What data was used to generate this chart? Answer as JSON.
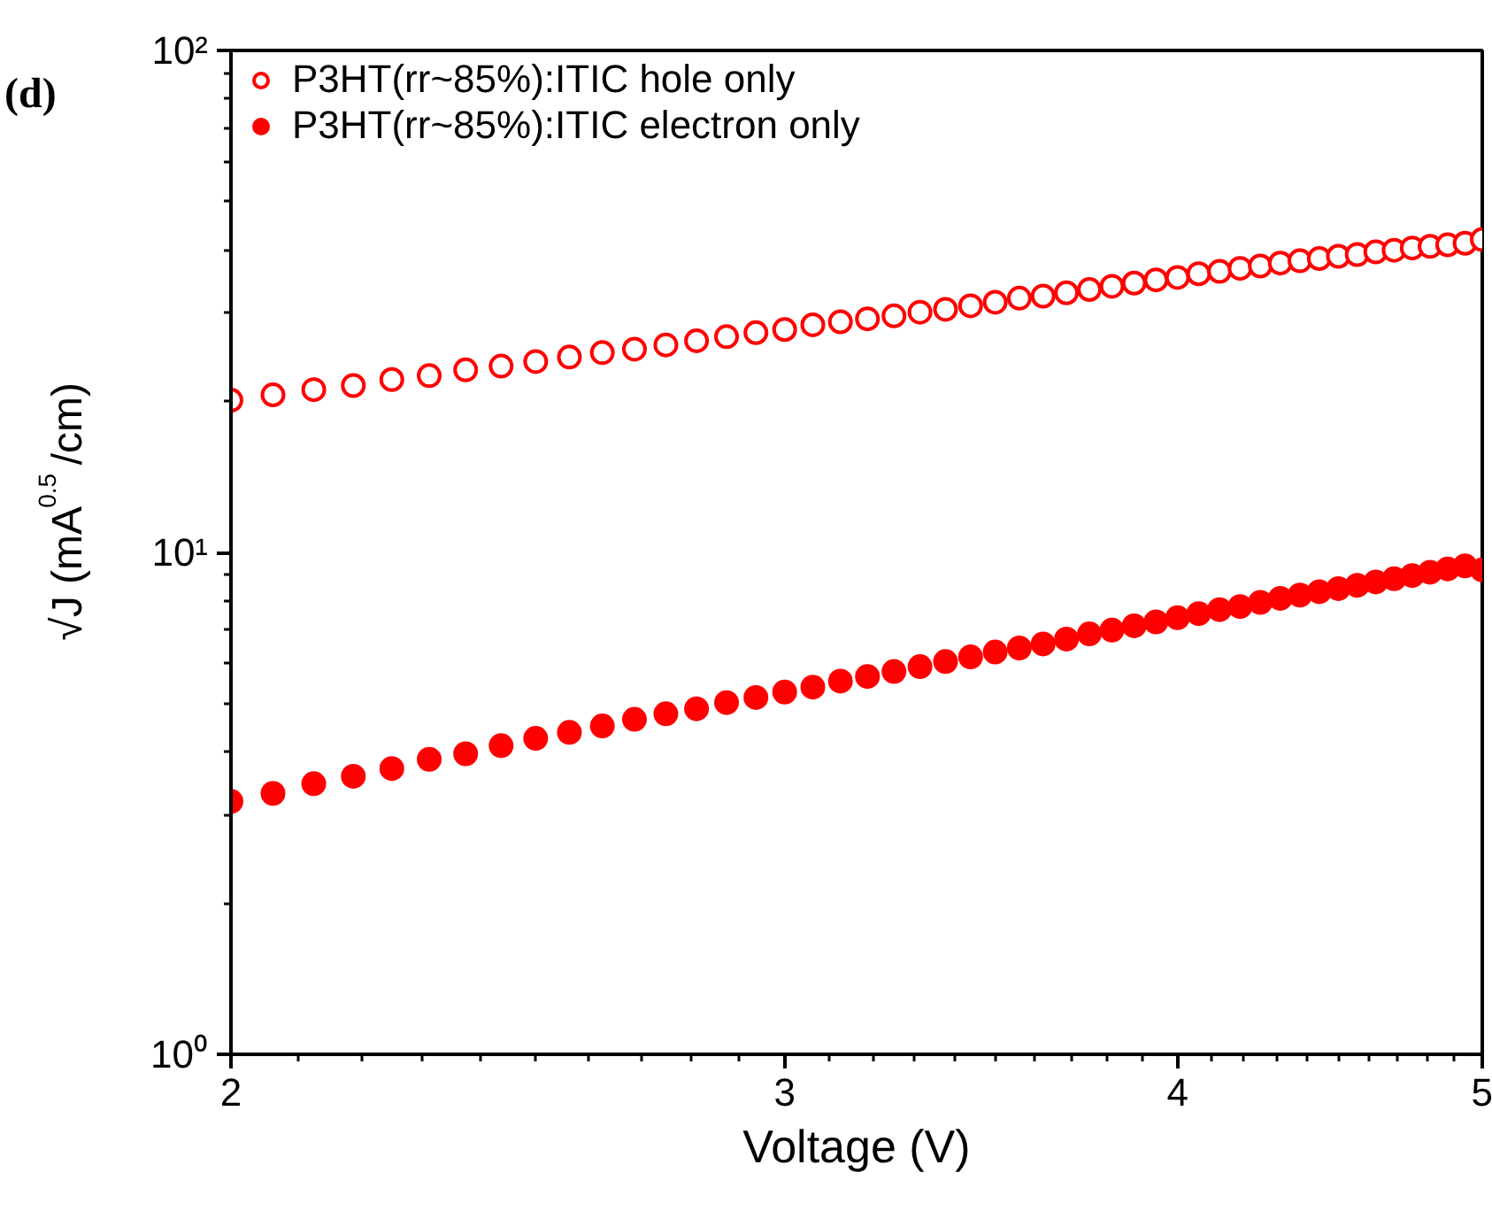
{
  "chart_data": {
    "type": "scatter",
    "title": "(d)",
    "xlabel": "Voltage (V)",
    "ylabel": "√J (mA$^{0.5}$/cm)",
    "x": [
      2.0,
      2.0625,
      2.125,
      2.1875,
      2.25,
      2.3125,
      2.375,
      2.4375,
      2.5,
      2.5625,
      2.625,
      2.6875,
      2.75,
      2.8125,
      2.875,
      2.9375,
      3.0,
      3.0625,
      3.125,
      3.1875,
      3.25,
      3.3125,
      3.375,
      3.4375,
      3.5,
      3.5625,
      3.625,
      3.6875,
      3.75,
      3.8125,
      3.875,
      3.9375,
      4.0,
      4.0625,
      4.125,
      4.1875,
      4.25,
      4.3125,
      4.375,
      4.4375,
      4.5,
      4.5625,
      4.625,
      4.6875,
      4.75,
      4.8125,
      4.875,
      4.9375,
      5.0
    ],
    "series": [
      {
        "name": "P3HT(rr~85%):ITIC hole only",
        "color": "#ff0000",
        "marker": "circle-open",
        "values": [
          20.1,
          20.6,
          21.1,
          21.5,
          22.1,
          22.5,
          23.1,
          23.5,
          24.0,
          24.5,
          25.0,
          25.4,
          25.9,
          26.4,
          26.9,
          27.4,
          27.8,
          28.4,
          28.8,
          29.2,
          29.6,
          30.1,
          30.5,
          31.0,
          31.5,
          32.1,
          32.4,
          32.9,
          33.4,
          33.9,
          34.4,
          34.9,
          35.3,
          35.9,
          36.3,
          36.8,
          37.2,
          37.7,
          38.1,
          38.5,
          38.9,
          39.2,
          39.7,
          40.0,
          40.4,
          40.7,
          41.0,
          41.3,
          42.0
        ]
      },
      {
        "name": "P3HT(rr~85%):ITIC electron only",
        "color": "#ff0000",
        "marker": "circle",
        "values": [
          3.19,
          3.31,
          3.46,
          3.58,
          3.71,
          3.87,
          3.97,
          4.12,
          4.26,
          4.38,
          4.51,
          4.65,
          4.77,
          4.88,
          5.02,
          5.14,
          5.27,
          5.39,
          5.54,
          5.66,
          5.79,
          5.92,
          6.06,
          6.19,
          6.33,
          6.45,
          6.57,
          6.72,
          6.88,
          7.0,
          7.14,
          7.27,
          7.41,
          7.55,
          7.69,
          7.8,
          7.95,
          8.1,
          8.22,
          8.35,
          8.47,
          8.6,
          8.73,
          8.86,
          8.99,
          9.13,
          9.27,
          9.4,
          9.23
        ]
      }
    ],
    "log": "xy",
    "xlim": [
      2,
      5
    ],
    "ylim": [
      1,
      100
    ],
    "xticks": [
      2,
      3,
      4,
      5
    ],
    "yticks": [
      {
        "value": 1,
        "label": "10⁰"
      },
      {
        "value": 10,
        "label": "10¹"
      },
      {
        "value": 100,
        "label": "10²"
      }
    ],
    "grid": false,
    "legend": "top left"
  }
}
